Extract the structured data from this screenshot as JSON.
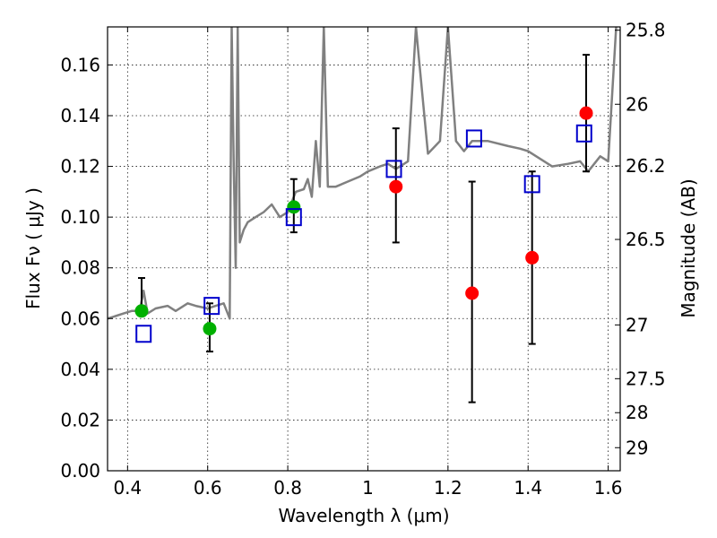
{
  "chart_data": {
    "type": "scatter",
    "xlabel": "Wavelength  λ (μm)",
    "ylabel": "Flux  Fν  ( μJy )",
    "ylabel_right": "Magnitude (AB)",
    "xlim": [
      0.35,
      1.63
    ],
    "ylim": [
      0.0,
      0.175
    ],
    "grid": true,
    "x_ticks": [
      0.4,
      0.6,
      0.8,
      1.0,
      1.2,
      1.4,
      1.6
    ],
    "x_tick_labels": [
      "0.4",
      "0.6",
      "0.8",
      "1",
      "1.2",
      "1.4",
      "1.6"
    ],
    "y_ticks": [
      0.0,
      0.02,
      0.04,
      0.06,
      0.08,
      0.1,
      0.12,
      0.14,
      0.16
    ],
    "y_tick_labels": [
      "0.00",
      "0.02",
      "0.04",
      "0.06",
      "0.08",
      "0.10",
      "0.12",
      "0.14",
      "0.16"
    ],
    "right_axis": {
      "labels": [
        "25.8",
        "26",
        "26.2",
        "26.5",
        "27",
        "27.5",
        "28",
        "29"
      ],
      "flux_positions": [
        0.1737,
        0.1445,
        0.1202,
        0.0912,
        0.0575,
        0.0363,
        0.0229,
        0.0091
      ]
    },
    "series": [
      {
        "type": "line",
        "color": "#808080",
        "x": [
          0.35,
          0.37,
          0.39,
          0.41,
          0.43,
          0.44,
          0.45,
          0.47,
          0.5,
          0.52,
          0.55,
          0.57,
          0.6,
          0.62,
          0.64,
          0.655,
          0.66,
          0.665,
          0.67,
          0.675,
          0.68,
          0.69,
          0.7,
          0.72,
          0.74,
          0.76,
          0.78,
          0.8,
          0.82,
          0.84,
          0.85,
          0.86,
          0.87,
          0.88,
          0.89,
          0.9,
          0.92,
          0.95,
          0.98,
          1.0,
          1.03,
          1.05,
          1.07,
          1.1,
          1.12,
          1.15,
          1.18,
          1.2,
          1.22,
          1.24,
          1.26,
          1.3,
          1.35,
          1.38,
          1.4,
          1.43,
          1.46,
          1.5,
          1.53,
          1.55,
          1.58,
          1.6,
          1.62
        ],
        "y": [
          0.06,
          0.061,
          0.062,
          0.063,
          0.063,
          0.071,
          0.062,
          0.064,
          0.065,
          0.063,
          0.066,
          0.065,
          0.064,
          0.065,
          0.066,
          0.06,
          0.175,
          0.12,
          0.08,
          0.175,
          0.09,
          0.095,
          0.098,
          0.1,
          0.102,
          0.105,
          0.1,
          0.102,
          0.11,
          0.111,
          0.115,
          0.108,
          0.13,
          0.112,
          0.175,
          0.112,
          0.112,
          0.114,
          0.116,
          0.118,
          0.12,
          0.121,
          0.119,
          0.122,
          0.175,
          0.125,
          0.13,
          0.175,
          0.13,
          0.126,
          0.13,
          0.13,
          0.128,
          0.127,
          0.126,
          0.123,
          0.12,
          0.121,
          0.122,
          0.118,
          0.124,
          0.122,
          0.175
        ]
      },
      {
        "type": "scatter",
        "color": "#00b000",
        "marker": "circle",
        "x": [
          0.435,
          0.605,
          0.815
        ],
        "y": [
          0.063,
          0.056,
          0.104
        ],
        "yerr_low": [
          0.063,
          0.047,
          0.094
        ],
        "yerr_high": [
          0.076,
          0.066,
          0.115
        ]
      },
      {
        "type": "scatter",
        "color": "#ff0000",
        "marker": "circle",
        "x": [
          1.07,
          1.26,
          1.41,
          1.545
        ],
        "y": [
          0.112,
          0.07,
          0.084,
          0.141
        ],
        "yerr_low": [
          0.09,
          0.027,
          0.05,
          0.118
        ],
        "yerr_high": [
          0.135,
          0.114,
          0.118,
          0.164
        ]
      },
      {
        "type": "scatter",
        "color": "#0000cc",
        "marker": "square-open",
        "x": [
          0.44,
          0.61,
          0.815,
          1.065,
          1.265,
          1.41,
          1.54
        ],
        "y": [
          0.054,
          0.065,
          0.1,
          0.119,
          0.131,
          0.113,
          0.133
        ]
      }
    ]
  }
}
